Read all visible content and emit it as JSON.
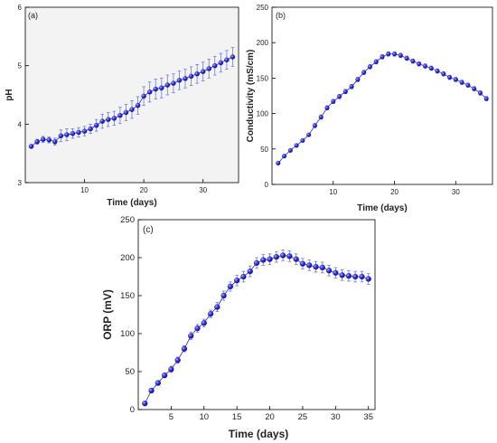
{
  "chart_data": [
    {
      "type": "scatter",
      "panel": "(a)",
      "xlabel": "Time (days)",
      "ylabel": "pH",
      "xlim": [
        0,
        36
      ],
      "ylim": [
        3,
        6
      ],
      "xticks": [
        10,
        20,
        30
      ],
      "yticks": [
        3,
        4,
        5,
        6
      ],
      "grid": false,
      "marker_color": "#2626c8",
      "plot_background": "#f3f3f3",
      "series": [
        {
          "x": [
            1,
            2,
            3,
            4,
            5,
            6,
            7,
            8,
            9,
            10,
            11,
            12,
            13,
            14,
            15,
            16,
            17,
            18,
            19,
            20,
            21,
            22,
            23,
            24,
            25,
            26,
            27,
            28,
            29,
            30,
            31,
            32,
            33,
            34,
            35
          ],
          "y": [
            3.62,
            3.7,
            3.74,
            3.73,
            3.7,
            3.8,
            3.82,
            3.84,
            3.86,
            3.88,
            3.92,
            3.98,
            4.05,
            4.08,
            4.1,
            4.15,
            4.2,
            4.25,
            4.32,
            4.48,
            4.55,
            4.6,
            4.62,
            4.67,
            4.7,
            4.75,
            4.78,
            4.82,
            4.86,
            4.9,
            4.95,
            5.0,
            5.05,
            5.1,
            5.15
          ],
          "err": [
            0.02,
            0.04,
            0.05,
            0.05,
            0.06,
            0.1,
            0.1,
            0.08,
            0.08,
            0.08,
            0.08,
            0.1,
            0.12,
            0.12,
            0.12,
            0.14,
            0.14,
            0.15,
            0.15,
            0.16,
            0.17,
            0.17,
            0.17,
            0.17,
            0.16,
            0.16,
            0.16,
            0.16,
            0.16,
            0.16,
            0.16,
            0.16,
            0.16,
            0.16,
            0.16
          ]
        }
      ]
    },
    {
      "type": "scatter",
      "panel": "(b)",
      "xlabel": "Time (days)",
      "ylabel": "Conductivity (mS/cm)",
      "xlim": [
        0,
        36
      ],
      "ylim": [
        0,
        250
      ],
      "xticks": [
        10,
        20,
        30
      ],
      "yticks": [
        0,
        50,
        100,
        150,
        200,
        250
      ],
      "grid": false,
      "marker_color": "#2626c8",
      "plot_background": "#ffffff",
      "series": [
        {
          "x": [
            1,
            2,
            3,
            4,
            5,
            6,
            7,
            8,
            9,
            10,
            11,
            12,
            13,
            14,
            15,
            16,
            17,
            18,
            19,
            20,
            21,
            22,
            23,
            24,
            25,
            26,
            27,
            28,
            29,
            30,
            31,
            32,
            33,
            34,
            35
          ],
          "y": [
            30,
            40,
            48,
            55,
            62,
            70,
            83,
            95,
            108,
            117,
            124,
            131,
            138,
            148,
            158,
            166,
            173,
            180,
            184,
            184,
            182,
            178,
            174,
            170,
            167,
            164,
            160,
            156,
            151,
            148,
            144,
            140,
            135,
            129,
            121
          ],
          "err": [
            2,
            2,
            2,
            2,
            2,
            2,
            3,
            3,
            3,
            3,
            3,
            3,
            3,
            3,
            3,
            3,
            3,
            3,
            3,
            3,
            3,
            3,
            3,
            3,
            3,
            3,
            3,
            3,
            3,
            3,
            3,
            3,
            3,
            3,
            3
          ]
        }
      ]
    },
    {
      "type": "scatter",
      "panel": "(c)",
      "xlabel": "Time (days)",
      "ylabel": "ORP (mV)",
      "xlim": [
        0,
        36
      ],
      "ylim": [
        0,
        250
      ],
      "xticks": [
        5,
        10,
        15,
        20,
        25,
        30,
        35
      ],
      "yticks": [
        0,
        50,
        100,
        150,
        200,
        250
      ],
      "grid": false,
      "marker_color": "#2626c8",
      "plot_background": "#ffffff",
      "series": [
        {
          "x": [
            1,
            2,
            3,
            4,
            5,
            6,
            7,
            8,
            9,
            10,
            11,
            12,
            13,
            14,
            15,
            16,
            17,
            18,
            19,
            20,
            21,
            22,
            23,
            24,
            25,
            26,
            27,
            28,
            29,
            30,
            31,
            32,
            33,
            34,
            35
          ],
          "y": [
            8,
            25,
            35,
            45,
            53,
            65,
            80,
            97,
            107,
            114,
            126,
            135,
            150,
            162,
            170,
            175,
            182,
            193,
            197,
            198,
            201,
            203,
            202,
            198,
            192,
            190,
            188,
            187,
            183,
            180,
            177,
            176,
            175,
            175,
            172
          ],
          "err": [
            2,
            3,
            3,
            3,
            4,
            4,
            4,
            5,
            5,
            5,
            5,
            6,
            6,
            6,
            7,
            7,
            7,
            7,
            7,
            7,
            7,
            7,
            7,
            7,
            7,
            7,
            7,
            7,
            7,
            7,
            7,
            7,
            7,
            7,
            7
          ]
        }
      ]
    }
  ]
}
